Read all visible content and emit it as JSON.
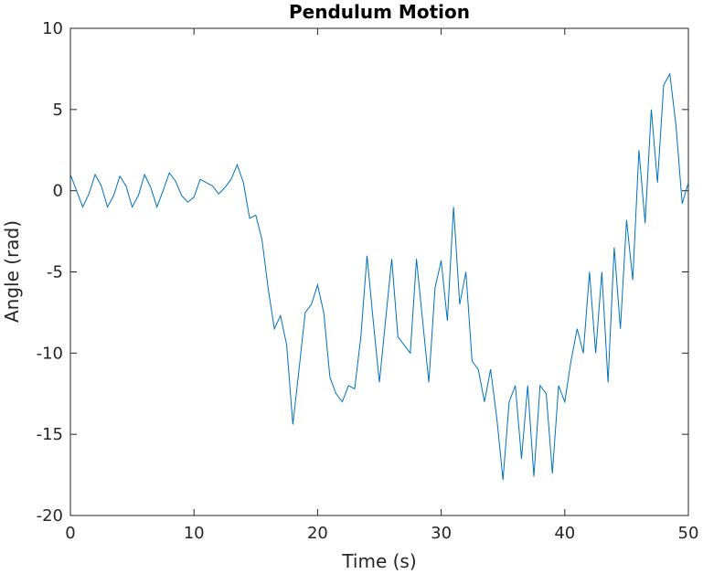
{
  "chart_data": {
    "type": "line",
    "title": "Pendulum Motion",
    "x_label": "Time (s)",
    "y_label": "Angle (rad)",
    "xlim": [
      0,
      50
    ],
    "ylim": [
      -20,
      10
    ],
    "xticks": [
      0,
      10,
      20,
      30,
      40,
      50
    ],
    "yticks": [
      -20,
      -15,
      -10,
      -5,
      0,
      5,
      10
    ],
    "x": [
      0,
      0.5,
      1,
      1.5,
      2,
      2.5,
      3,
      3.5,
      4,
      4.5,
      5,
      5.5,
      6,
      6.5,
      7,
      7.5,
      8,
      8.5,
      9,
      9.5,
      10,
      10.5,
      11,
      11.5,
      12,
      12.5,
      13,
      13.5,
      14,
      14.5,
      15,
      15.5,
      16,
      16.5,
      17,
      17.5,
      18,
      18.5,
      19,
      19.5,
      20,
      20.5,
      21,
      21.5,
      22,
      22.5,
      23,
      23.5,
      24,
      24.5,
      25,
      25.5,
      26,
      26.5,
      27,
      27.5,
      28,
      28.5,
      29,
      29.5,
      30,
      30.5,
      31,
      31.5,
      32,
      32.5,
      33,
      33.5,
      34,
      34.5,
      35,
      35.5,
      36,
      36.5,
      37,
      37.5,
      38,
      38.5,
      39,
      39.5,
      40,
      40.5,
      41,
      41.5,
      42,
      42.5,
      43,
      43.5,
      44,
      44.5,
      45,
      45.5,
      46,
      46.5,
      47,
      47.5,
      48,
      48.5,
      49,
      49.5,
      50
    ],
    "series": [
      {
        "name": "Angle",
        "color": "#0072bd",
        "values": [
          1,
          0,
          -1,
          -0.2,
          1,
          0.3,
          -1,
          -0.3,
          0.9,
          0.3,
          -1,
          -0.3,
          1,
          0.2,
          -1,
          0,
          1.1,
          0.6,
          -0.3,
          -0.7,
          -0.4,
          0.7,
          0.5,
          0.3,
          -0.2,
          0.2,
          0.7,
          1.6,
          0.5,
          -1.7,
          -1.5,
          -3,
          -6,
          -8.5,
          -7.7,
          -9.5,
          -14.4,
          -11,
          -7.5,
          -7,
          -5.8,
          -7.5,
          -11.5,
          -12.5,
          -13,
          -12,
          -12.2,
          -9,
          -4,
          -8,
          -11.8,
          -8,
          -4.2,
          -9,
          -9.5,
          -10,
          -4.2,
          -8,
          -11.8,
          -6,
          -4.3,
          -8,
          -1,
          -7,
          -5,
          -10.5,
          -11,
          -13,
          -11,
          -14,
          -17.8,
          -13,
          -12,
          -16.5,
          -12,
          -17.6,
          -12,
          -12.5,
          -17.4,
          -12,
          -13,
          -10.5,
          -8.5,
          -10,
          -5,
          -10,
          -5,
          -11.8,
          -3.5,
          -8.5,
          -1.8,
          -5.5,
          2.5,
          -2,
          5,
          0.5,
          6.5,
          7.2,
          4,
          -0.8,
          0.5
        ]
      }
    ]
  }
}
